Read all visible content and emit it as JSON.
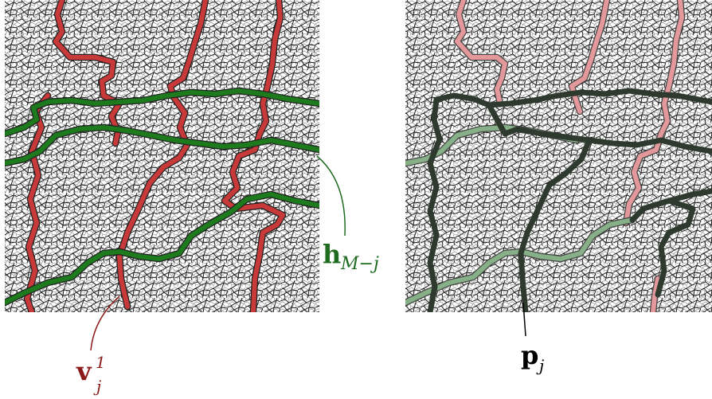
{
  "labels": {
    "v": {
      "base": "v",
      "sub": "j",
      "sup": "1",
      "color": "#8b1a1a"
    },
    "h": {
      "base": "h",
      "sub": "M−j",
      "color": "#1f6b1f"
    },
    "p": {
      "base": "p",
      "sub": "j",
      "color": "#000000"
    }
  },
  "colors": {
    "red_path": "#c83a3a",
    "red_path_faded": "#e3999b",
    "green_path": "#1d7a1d",
    "green_path_faded": "#88b088",
    "dark_path": "#2e3a2e",
    "cell_fill": "#ffffff",
    "cell_stroke": "#111111"
  },
  "panels": [
    {
      "name": "left-mosaic-panel"
    },
    {
      "name": "right-mosaic-panel"
    }
  ]
}
